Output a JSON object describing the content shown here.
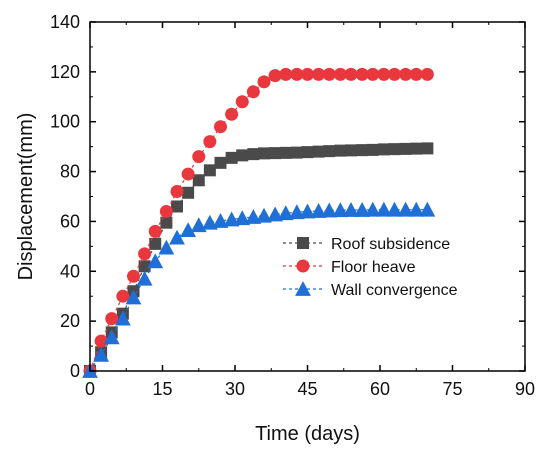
{
  "chart_data": {
    "type": "line",
    "xlabel": "Time (days)",
    "ylabel": "Displacement(mm)",
    "xlim": [
      0,
      90
    ],
    "ylim": [
      0,
      140
    ],
    "xticks": [
      0,
      15,
      30,
      45,
      60,
      75,
      90
    ],
    "yticks": [
      0,
      20,
      40,
      60,
      80,
      100,
      120,
      140
    ],
    "grid": false,
    "legend_position": "right",
    "series": [
      {
        "name": "Roof subsidence",
        "color": "#4a4a4a",
        "marker": "square",
        "x": [
          0,
          2.3,
          4.5,
          6.8,
          9.0,
          11.3,
          13.5,
          15.8,
          18.0,
          20.3,
          22.5,
          24.8,
          27.0,
          29.3,
          31.5,
          33.8,
          36.0,
          38.3,
          40.5,
          42.8,
          45.0,
          47.3,
          49.5,
          51.8,
          54.0,
          56.3,
          58.5,
          60.8,
          63.0,
          65.3,
          67.5,
          69.8
        ],
        "y": [
          0,
          7.5,
          15.5,
          23,
          32,
          42,
          51,
          59.5,
          66,
          71.5,
          76.5,
          80.5,
          83.5,
          85.5,
          86.5,
          87,
          87.3,
          87.4,
          87.5,
          87.6,
          87.8,
          88,
          88.2,
          88.4,
          88.5,
          88.6,
          88.7,
          88.9,
          89.0,
          89.1,
          89.2,
          89.3
        ]
      },
      {
        "name": "Floor heave",
        "color": "#e8383d",
        "marker": "circle",
        "x": [
          0,
          2.3,
          4.5,
          6.8,
          9.0,
          11.3,
          13.5,
          15.8,
          18.0,
          20.3,
          22.5,
          24.8,
          27.0,
          29.3,
          31.5,
          33.8,
          36.0,
          38.3,
          40.5,
          42.8,
          45.0,
          47.3,
          49.5,
          51.8,
          54.0,
          56.3,
          58.5,
          60.8,
          63.0,
          65.3,
          67.5,
          69.8
        ],
        "y": [
          0,
          12,
          21,
          30,
          38,
          47,
          56,
          64,
          72,
          79,
          86,
          92,
          98,
          103,
          108,
          112,
          116,
          118.5,
          119,
          119,
          119,
          119,
          119,
          119,
          119,
          119,
          119,
          119,
          119,
          119,
          119,
          119
        ]
      },
      {
        "name": "Wall convergence",
        "color": "#1f6fd6",
        "marker": "triangle",
        "x": [
          0,
          2.3,
          4.5,
          6.8,
          9.0,
          11.3,
          13.5,
          15.8,
          18.0,
          20.3,
          22.5,
          24.8,
          27.0,
          29.3,
          31.5,
          33.8,
          36.0,
          38.3,
          40.5,
          42.8,
          45.0,
          47.3,
          49.5,
          51.8,
          54.0,
          56.3,
          58.5,
          60.8,
          63.0,
          65.3,
          67.5,
          69.8
        ],
        "y": [
          0,
          6.5,
          13.5,
          21,
          29.5,
          37,
          44,
          49.5,
          53.5,
          56.5,
          58.5,
          59.5,
          60.2,
          60.8,
          61.3,
          61.8,
          62.3,
          62.8,
          63.3,
          63.7,
          64.0,
          64.2,
          64.4,
          64.5,
          64.6,
          64.6,
          64.7,
          64.7,
          64.7,
          64.7,
          64.7,
          64.7
        ]
      }
    ]
  }
}
